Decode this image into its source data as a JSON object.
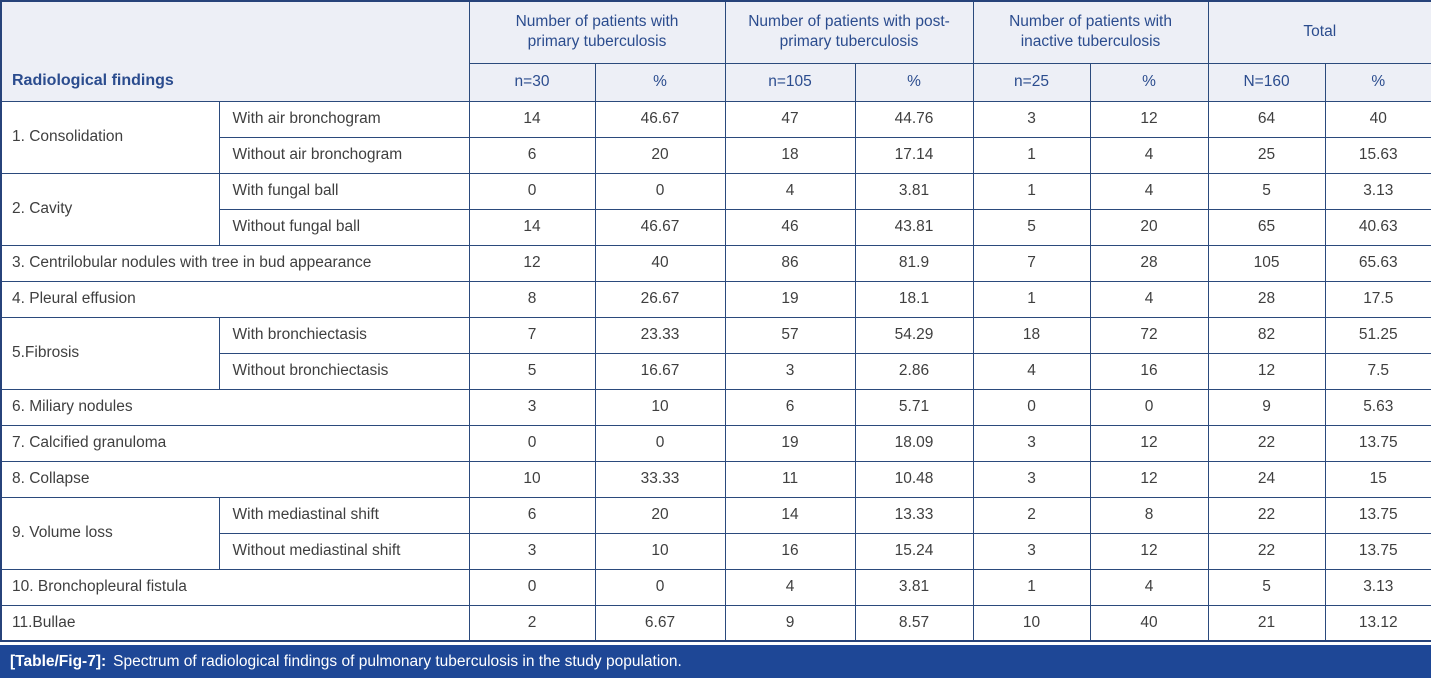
{
  "colors": {
    "grid_border": "#2b4a7c",
    "header_bg": "#edeff6",
    "header_text": "#2b4c8e",
    "body_text": "#3f3f3f",
    "caption_bg": "#1e4796",
    "caption_text": "#ffffff"
  },
  "table": {
    "first_col_header": "Radiological findings",
    "groups": [
      {
        "label": "Number of patients with primary tuberculosis",
        "n": "n=30",
        "pct": "%"
      },
      {
        "label": "Number of patients with post-primary tuberculosis",
        "n": "n=105",
        "pct": "%"
      },
      {
        "label": "Number of patients with inactive tuberculosis",
        "n": "n=25",
        "pct": "%"
      },
      {
        "label": "Total",
        "n": "N=160",
        "pct": "%"
      }
    ],
    "rows": [
      {
        "category": "1. Consolidation",
        "rowspan": 2,
        "sub": "With air bronchogram",
        "values": [
          "14",
          "46.67",
          "47",
          "44.76",
          "3",
          "12",
          "64",
          "40"
        ]
      },
      {
        "sub": "Without air bronchogram",
        "values": [
          "6",
          "20",
          "18",
          "17.14",
          "1",
          "4",
          "25",
          "15.63"
        ]
      },
      {
        "category": "2. Cavity",
        "rowspan": 2,
        "sub": "With fungal ball",
        "values": [
          "0",
          "0",
          "4",
          "3.81",
          "1",
          "4",
          "5",
          "3.13"
        ]
      },
      {
        "sub": "Without fungal ball",
        "values": [
          "14",
          "46.67",
          "46",
          "43.81",
          "5",
          "20",
          "65",
          "40.63"
        ]
      },
      {
        "label": "3. Centrilobular nodules with tree in bud appearance",
        "values": [
          "12",
          "40",
          "86",
          "81.9",
          "7",
          "28",
          "105",
          "65.63"
        ]
      },
      {
        "label": "4. Pleural effusion",
        "values": [
          "8",
          "26.67",
          "19",
          "18.1",
          "1",
          "4",
          "28",
          "17.5"
        ]
      },
      {
        "category": "5.Fibrosis",
        "rowspan": 2,
        "sub": "With bronchiectasis",
        "values": [
          "7",
          "23.33",
          "57",
          "54.29",
          "18",
          "72",
          "82",
          "51.25"
        ]
      },
      {
        "sub": "Without bronchiectasis",
        "values": [
          "5",
          "16.67",
          "3",
          "2.86",
          "4",
          "16",
          "12",
          "7.5"
        ]
      },
      {
        "label": "6. Miliary nodules",
        "values": [
          "3",
          "10",
          "6",
          "5.71",
          "0",
          "0",
          "9",
          "5.63"
        ]
      },
      {
        "label": "7. Calcified granuloma",
        "values": [
          "0",
          "0",
          "19",
          "18.09",
          "3",
          "12",
          "22",
          "13.75"
        ]
      },
      {
        "label": "8. Collapse",
        "values": [
          "10",
          "33.33",
          "11",
          "10.48",
          "3",
          "12",
          "24",
          "15"
        ]
      },
      {
        "category": "9. Volume loss",
        "rowspan": 2,
        "sub": "With mediastinal shift",
        "values": [
          "6",
          "20",
          "14",
          "13.33",
          "2",
          "8",
          "22",
          "13.75"
        ]
      },
      {
        "sub": "Without mediastinal shift",
        "values": [
          "3",
          "10",
          "16",
          "15.24",
          "3",
          "12",
          "22",
          "13.75"
        ]
      },
      {
        "label": "10. Bronchopleural fistula",
        "values": [
          "0",
          "0",
          "4",
          "3.81",
          "1",
          "4",
          "5",
          "3.13"
        ]
      },
      {
        "label": "11.Bullae",
        "values": [
          "2",
          "6.67",
          "9",
          "8.57",
          "10",
          "40",
          "21",
          "13.12"
        ]
      }
    ]
  },
  "caption": {
    "tag": "[Table/Fig-7]:",
    "text": "Spectrum of radiological findings of pulmonary tuberculosis in the study population."
  }
}
